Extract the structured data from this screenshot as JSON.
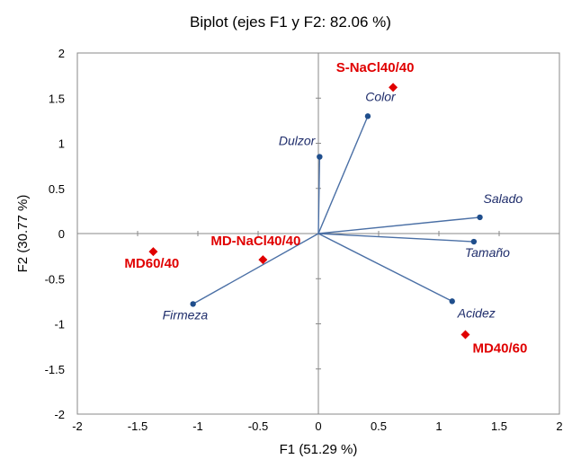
{
  "chart_data": {
    "type": "scatter",
    "title": "Biplot (ejes F1 y F2: 82.06 %)",
    "xlabel": "F1 (51.29 %)",
    "ylabel": "F2 (30.77 %)",
    "xlim": [
      -2,
      2
    ],
    "ylim": [
      -2,
      2
    ],
    "xticks": [
      -2,
      -1.5,
      -1,
      -0.5,
      0,
      0.5,
      1,
      1.5,
      2
    ],
    "yticks": [
      -2,
      -1.5,
      -1,
      -0.5,
      0,
      0.5,
      1,
      1.5,
      2
    ],
    "xtick_labels": [
      "-2",
      "-1.5",
      "-1",
      "-0.5",
      "0",
      "0.5",
      "1",
      "1.5",
      "2"
    ],
    "ytick_labels": [
      "-2",
      "-1.5",
      "-1",
      "-0.5",
      "0",
      "0.5",
      "1",
      "1.5",
      "2"
    ],
    "grid": false,
    "colors": {
      "variables": "#4a6fa5",
      "variable_text": "#1f2d6b",
      "observations": "#e00000"
    },
    "series": [
      {
        "kind": "variables",
        "marker": "circle-vector",
        "points": [
          {
            "label": "Color",
            "x": 0.41,
            "y": 1.3
          },
          {
            "label": "Dulzor",
            "x": 0.01,
            "y": 0.85
          },
          {
            "label": "Salado",
            "x": 1.34,
            "y": 0.18
          },
          {
            "label": "Tamaño",
            "x": 1.29,
            "y": -0.09
          },
          {
            "label": "Acidez",
            "x": 1.11,
            "y": -0.75
          },
          {
            "label": "Firmeza",
            "x": -1.04,
            "y": -0.78
          }
        ]
      },
      {
        "kind": "observations",
        "marker": "diamond",
        "points": [
          {
            "label": "S-NaCl40/40",
            "x": 0.62,
            "y": 1.62
          },
          {
            "label": "MD-NaCl40/40",
            "x": -0.46,
            "y": -0.29
          },
          {
            "label": "MD60/40",
            "x": -1.37,
            "y": -0.2
          },
          {
            "label": "MD40/60",
            "x": 1.22,
            "y": -1.12
          }
        ]
      }
    ]
  }
}
